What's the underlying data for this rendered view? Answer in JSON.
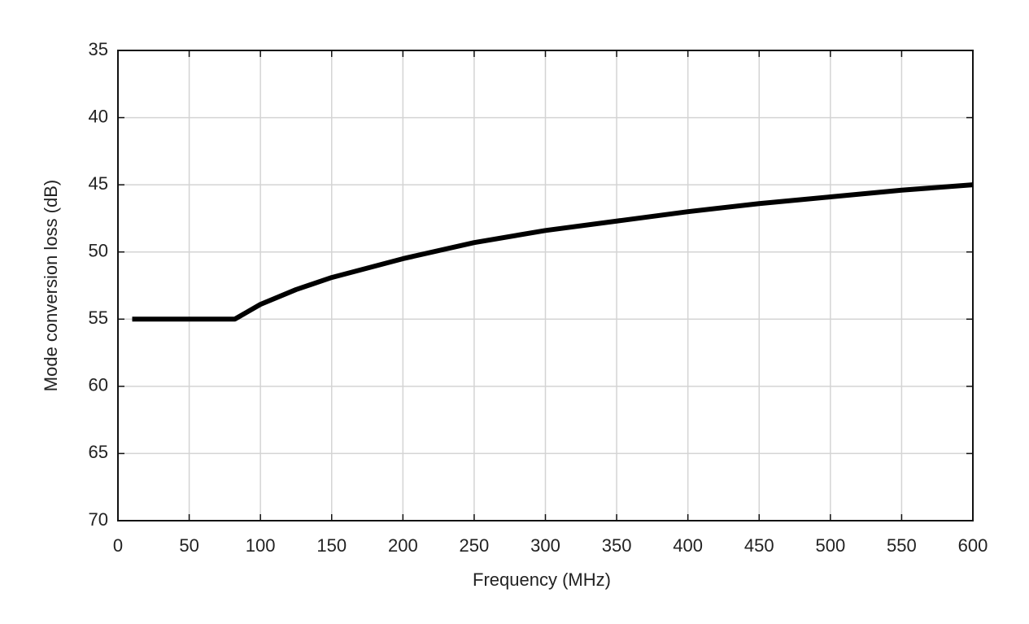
{
  "chart_data": {
    "type": "line",
    "x_label": "Frequency (MHz)",
    "y_label": "Mode conversion loss (dB)",
    "x": [
      10,
      82,
      100,
      125,
      150,
      200,
      250,
      300,
      350,
      400,
      450,
      500,
      550,
      600
    ],
    "series": [
      {
        "color": "#000000",
        "values": [
          55,
          55,
          53.9,
          52.8,
          51.9,
          50.5,
          49.3,
          48.4,
          47.7,
          47.0,
          46.4,
          45.9,
          45.4,
          45.0
        ]
      }
    ],
    "xlim": [
      0,
      600
    ],
    "xticks": [
      0,
      50,
      100,
      150,
      200,
      250,
      300,
      350,
      400,
      450,
      500,
      550,
      600
    ],
    "ylim": [
      70,
      35
    ],
    "yticks": [
      35,
      40,
      45,
      50,
      55,
      60,
      65,
      70
    ],
    "grid": true
  }
}
